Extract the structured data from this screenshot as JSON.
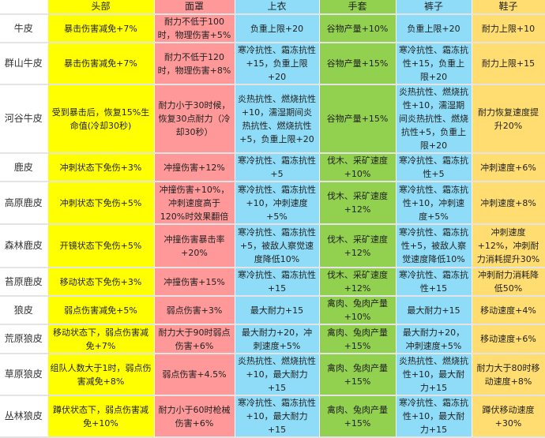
{
  "colors": {
    "head": "#ffff00",
    "mask": "#ff9999",
    "shirt": "#8edcf7",
    "gloves": "#92d050",
    "pants": "#8edcf7",
    "shoes": "#ffdd70"
  },
  "columns": [
    "",
    "头部",
    "面罩",
    "上衣",
    "手套",
    "裤子",
    "鞋子"
  ],
  "rows": [
    {
      "name": "牛皮",
      "cells": [
        "暴击伤害减免+7%",
        "耐力不低于100时，物理伤害+5%",
        "负重上限+20",
        "谷物产量+10%",
        "负重上限+20",
        "耐力上限+10"
      ]
    },
    {
      "name": "群山牛皮",
      "cells": [
        "暴击伤害减免+7%",
        "耐力不低于120时，物理伤害+8%",
        "寒冷抗性、霜冻抗性+15，负重上限+20",
        "谷物产量+15%",
        "寒冷抗性、霜冻抗性+15，负重上限+20",
        "耐力上限+15"
      ]
    },
    {
      "name": "河谷牛皮",
      "cells": [
        "受到暴击后，恢复15%生命值(冷却30秒)",
        "耐力小于30时候，恢复30点耐力（冷却30秒）",
        "炎热抗性、燃烧抗性+10，濡湿期间炎热抗性、燃烧抗性+5，负重上限+20",
        "谷物产量+15%",
        "炎热抗性、燃烧抗性+10，濡湿期间炎热抗性、燃烧抗性+5，负重上限+20",
        "耐力恢复速度提升20%"
      ]
    },
    {
      "name": "鹿皮",
      "cells": [
        "冲刺状态下免伤+3%",
        "冲撞伤害+12%",
        "寒冷抗性、霜冻抗性+5",
        "伐木、采矿速度+10%",
        "寒冷抗性、霜冻抗性+5",
        "冲刺速度+6%"
      ]
    },
    {
      "name": "高原鹿皮",
      "cells": [
        "冲刺状态下免伤+5%",
        "冲撞伤害+10%，冲刺速度高于120%时效果翻倍",
        "寒冷抗性、霜冻抗性+10，冲刺速度+5%",
        "伐木、采矿速度+12%",
        "寒冷抗性、霜冻抗性+10，冲刺速度+5%",
        "冲刺速度+8%"
      ]
    },
    {
      "name": "森林鹿皮",
      "cells": [
        "开镜状态下免伤+5%",
        "冲撞伤害暴击率+20%",
        "寒冷抗性、霜冻抗性+5，被敌人察觉速度降低10%",
        "伐木、采矿速度+12%",
        "寒冷抗性、霜冻抗性+5，被敌人察觉速度降低10%",
        "冲刺速度+12%，冲刺耐力消耗提升30%"
      ]
    },
    {
      "name": "苔原鹿皮",
      "cells": [
        "移动状态下免伤+3%",
        "冲撞伤害+15%",
        "寒冷抗性、霜冻抗性+15",
        "伐木、采矿速度+12%",
        "寒冷抗性、霜冻抗性+15",
        "冲刺耐力消耗降低50%"
      ]
    },
    {
      "name": "狼皮",
      "cells": [
        "弱点伤害减免+5%",
        "弱点伤害+3%",
        "最大耐力+15",
        "禽肉、兔肉产量+10%",
        "最大耐力+15",
        "移动速度+4%"
      ]
    },
    {
      "name": "荒原狼皮",
      "cells": [
        "移动状态下，弱点伤害减免+7%",
        "耐力大于90时弱点伤害+6%",
        "最大耐力+20，冲刺速度+5%",
        "禽肉、兔肉产量+15%",
        "最大耐力+20，冲刺速度+5%",
        "移动速度+6%"
      ]
    },
    {
      "name": "草原狼皮",
      "cells": [
        "组队人数大于1时，弱点伤害减免+8%",
        "弱点伤害+4.5%",
        "炎热抗性、燃烧抗性+10，最大耐力+15",
        "禽肉、兔肉产量+15%",
        "炎热抗性、燃烧抗性+10，最大耐力+15",
        "耐力大于80时移动速度+8%"
      ]
    },
    {
      "name": "丛林狼皮",
      "cells": [
        "蹲伏状态下，弱点伤害减免+10%",
        "耐力小于60时枪械伤害+6%",
        "寒冷抗性、霜冻抗性+10，最大耐力+15",
        "禽肉、兔肉产量+15%",
        "寒冷抗性、霜冻抗性+10，最大耐力+15",
        "蹲伏移动速度+30%"
      ]
    }
  ]
}
